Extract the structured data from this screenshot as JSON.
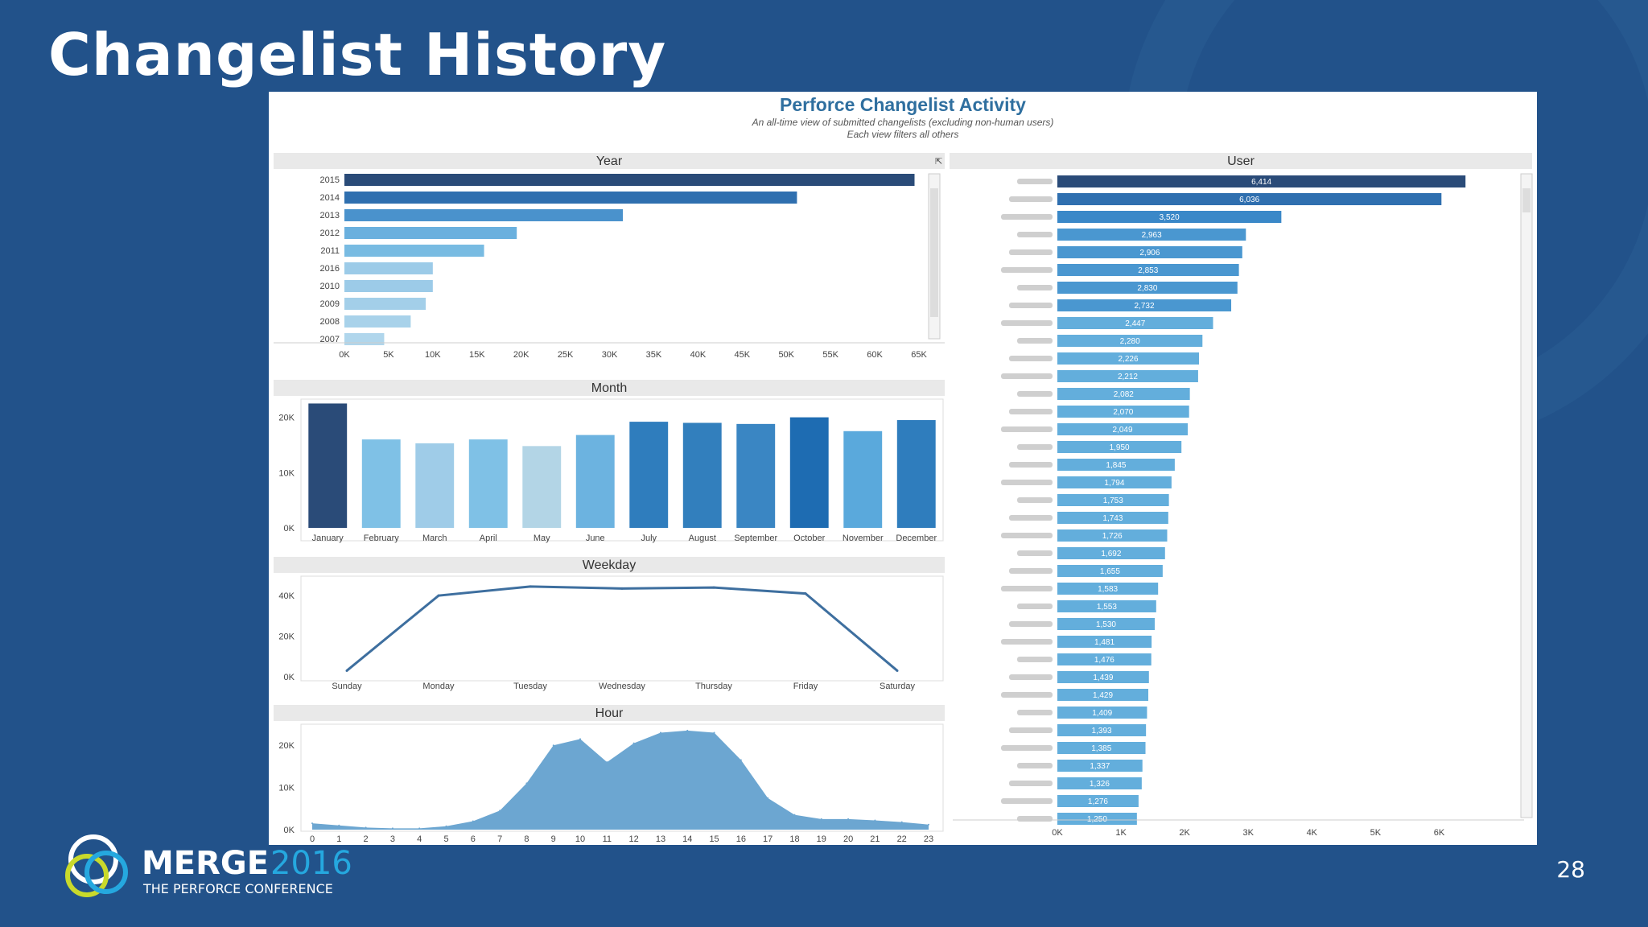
{
  "slide": {
    "title": "Changelist History",
    "page_number": "28"
  },
  "logo": {
    "brand": "MERGE",
    "year": "2016",
    "subtitle": "THE PERFORCE CONFERENCE"
  },
  "dashboard": {
    "title": "Perforce Changelist Activity",
    "subtitle_line1": "An all-time view of submitted changelists (excluding non-human users)",
    "subtitle_line2": "Each view filters all others"
  },
  "colors": {
    "slide_bg": "#22528a",
    "dark_bar": "#2a4b78",
    "mid_bar": "#2f7dbd",
    "light_bar": "#7fbfe6",
    "area": "#6ca6d1",
    "line": "#3e6f9f"
  },
  "chart_data": [
    {
      "name": "Year",
      "type": "bar",
      "orientation": "horizontal",
      "categories": [
        "2015",
        "2014",
        "2013",
        "2012",
        "2011",
        "2016",
        "2010",
        "2009",
        "2008",
        "2007"
      ],
      "values": [
        64500,
        51200,
        31500,
        19500,
        15800,
        10000,
        10000,
        9200,
        7500,
        4500
      ],
      "colors": [
        "#2a4b78",
        "#2f6faf",
        "#4a92cc",
        "#6ab0de",
        "#78bbe2",
        "#9ccbe8",
        "#9ccbe8",
        "#a3cfe9",
        "#a8d2ea",
        "#b0d6ec"
      ],
      "xlim": [
        0,
        65000
      ],
      "xticks": [
        "0K",
        "5K",
        "10K",
        "15K",
        "20K",
        "25K",
        "30K",
        "35K",
        "40K",
        "45K",
        "50K",
        "55K",
        "60K",
        "65K"
      ]
    },
    {
      "name": "Month",
      "type": "bar",
      "categories": [
        "January",
        "February",
        "March",
        "April",
        "May",
        "June",
        "July",
        "August",
        "September",
        "October",
        "November",
        "December"
      ],
      "values": [
        22500,
        16000,
        15300,
        16000,
        14800,
        16800,
        19200,
        19000,
        18800,
        20000,
        17500,
        19500
      ],
      "colors": [
        "#2a4b78",
        "#7fc1e6",
        "#9fcce8",
        "#7fc1e6",
        "#b3d5e6",
        "#6cb3e0",
        "#2f7dbd",
        "#327fbd",
        "#3a86c3",
        "#1e6cb2",
        "#5aa9dc",
        "#2f7dbd"
      ],
      "ylim": [
        0,
        23000
      ],
      "yticks": [
        {
          "v": 0,
          "t": "0K"
        },
        {
          "v": 10000,
          "t": "10K"
        },
        {
          "v": 20000,
          "t": "20K"
        }
      ]
    },
    {
      "name": "Weekday",
      "type": "line",
      "categories": [
        "Sunday",
        "Monday",
        "Tuesday",
        "Wednesday",
        "Thursday",
        "Friday",
        "Saturday"
      ],
      "values": [
        3000,
        40000,
        44500,
        43500,
        44000,
        41000,
        3000
      ],
      "ylim": [
        0,
        48000
      ],
      "yticks": [
        {
          "v": 0,
          "t": "0K"
        },
        {
          "v": 20000,
          "t": "20K"
        },
        {
          "v": 40000,
          "t": "40K"
        }
      ]
    },
    {
      "name": "Hour",
      "type": "area",
      "categories": [
        "0",
        "1",
        "2",
        "3",
        "4",
        "5",
        "6",
        "7",
        "8",
        "9",
        "10",
        "11",
        "12",
        "13",
        "14",
        "15",
        "16",
        "17",
        "18",
        "19",
        "20",
        "21",
        "22",
        "23"
      ],
      "values": [
        1500,
        1000,
        500,
        300,
        300,
        800,
        2000,
        4500,
        11000,
        20000,
        21500,
        16000,
        20500,
        23000,
        23500,
        23000,
        16500,
        7500,
        3500,
        2500,
        2500,
        2200,
        1800,
        1200
      ],
      "ylim": [
        0,
        25000
      ],
      "yticks": [
        {
          "v": 0,
          "t": "0K"
        },
        {
          "v": 10000,
          "t": "10K"
        },
        {
          "v": 20000,
          "t": "20K"
        }
      ]
    },
    {
      "name": "User",
      "type": "bar",
      "orientation": "horizontal",
      "values": [
        6414,
        6036,
        3520,
        2963,
        2906,
        2853,
        2830,
        2732,
        2447,
        2280,
        2226,
        2212,
        2082,
        2070,
        2049,
        1950,
        1845,
        1794,
        1753,
        1743,
        1726,
        1692,
        1655,
        1583,
        1553,
        1530,
        1481,
        1476,
        1439,
        1429,
        1409,
        1393,
        1385,
        1337,
        1326,
        1276,
        1250
      ],
      "labels": [
        "6,414",
        "6,036",
        "3,520",
        "2,963",
        "2,906",
        "2,853",
        "2,830",
        "2,732",
        "2,447",
        "2,280",
        "2,226",
        "2,212",
        "2,082",
        "2,070",
        "2,049",
        "1,950",
        "1,845",
        "1,794",
        "1,753",
        "1,743",
        "1,726",
        "1,692",
        "1,655",
        "1,583",
        "1,553",
        "1,530",
        "1,481",
        "1,476",
        "1,439",
        "1,429",
        "1,409",
        "1,393",
        "1,385",
        "1,337",
        "1,326",
        "1,276",
        "1,250"
      ],
      "xlim": [
        0,
        6500
      ],
      "xticks": [
        "0K",
        "1K",
        "2K",
        "3K",
        "4K",
        "5K",
        "6K"
      ]
    }
  ]
}
